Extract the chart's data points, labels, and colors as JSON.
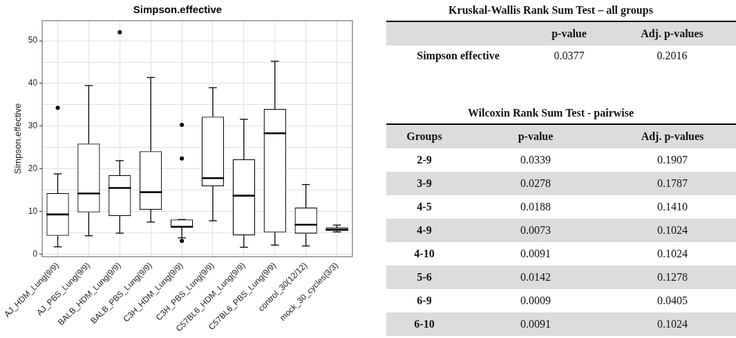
{
  "chart_data": [
    {
      "type": "box",
      "title": "Simpson.effective",
      "ylabel": "Simpson.effective",
      "categories": [
        "AJ_HDM_Lung(9/9)",
        "AJ_PBS_Lung(9/9)",
        "BALB_HDM_Lung(9/9)",
        "BALB_PBS_Lung(9/9)",
        "C3H_HDM_Lung(9/9)",
        "C3H_PBS_Lung(9/9)",
        "C57BL6_HDM_Lung(9/9)",
        "C57BL6_PBS_Lung(9/9)",
        "control_30(12/12)",
        "mock_30_cycles(3/3)"
      ],
      "boxes": [
        {
          "low": 1.7,
          "q1": 4.3,
          "median": 9.3,
          "q3": 14.3,
          "high": 18.8,
          "outliers": [
            34.3
          ]
        },
        {
          "low": 4.3,
          "q1": 9.8,
          "median": 14.2,
          "q3": 25.9,
          "high": 39.5
        },
        {
          "low": 4.9,
          "q1": 8.9,
          "median": 15.5,
          "q3": 18.5,
          "high": 21.9,
          "outliers": [
            52.0
          ]
        },
        {
          "low": 7.5,
          "q1": 10.4,
          "median": 14.5,
          "q3": 24.1,
          "high": 41.4
        },
        {
          "low": 3.8,
          "q1": 6.2,
          "median": 6.4,
          "q3": 8.1,
          "high": 8.1,
          "outliers": [
            3.1,
            22.4,
            30.3
          ]
        },
        {
          "low": 7.8,
          "q1": 15.9,
          "median": 17.8,
          "q3": 32.2,
          "high": 39.0
        },
        {
          "low": 1.6,
          "q1": 4.4,
          "median": 13.7,
          "q3": 22.2,
          "high": 31.6
        },
        {
          "low": 2.1,
          "q1": 5.1,
          "median": 28.3,
          "q3": 34.0,
          "high": 45.2
        },
        {
          "low": 1.9,
          "q1": 4.8,
          "median": 6.9,
          "q3": 10.9,
          "high": 16.3
        },
        {
          "low": 5.2,
          "q1": 5.5,
          "median": 5.7,
          "q3": 6.2,
          "high": 6.8
        }
      ],
      "color": "#000000",
      "ylim": [
        -0.6,
        54.7
      ],
      "yticks": [
        0,
        {
          "value": 5,
          "label": null
        },
        10,
        {
          "value": 15,
          "label": null
        },
        20,
        {
          "value": 25,
          "label": null
        },
        30,
        {
          "value": 35,
          "label": null
        },
        40,
        {
          "value": 45,
          "label": null
        },
        50
      ],
      "grid": true
    },
    {
      "type": "other",
      "title": "Kruskal-Wallis Rank Sum Test – all groups",
      "annotations": [
        "p-value",
        "Adj. p-values",
        "Simpson effective",
        "0.0377",
        "0.2016"
      ]
    },
    {
      "type": "other",
      "title": "Wilcoxin Rank Sum Test - pairwise",
      "annotations": [
        "Groups",
        "p-value",
        "Adj. p-values",
        "2-9",
        "0.0339",
        "0.1907",
        "3-9",
        "0.0278",
        "0.1787",
        "4-5",
        "0.0188",
        "0.1410",
        "4-9",
        "0.0073",
        "0.1024",
        "4-10",
        "0.0091",
        "0.1024",
        "5-6",
        "0.0142",
        "0.1278",
        "6-9",
        "0.0009",
        "0.0405",
        "6-10",
        "0.0091",
        "0.1024"
      ]
    }
  ]
}
